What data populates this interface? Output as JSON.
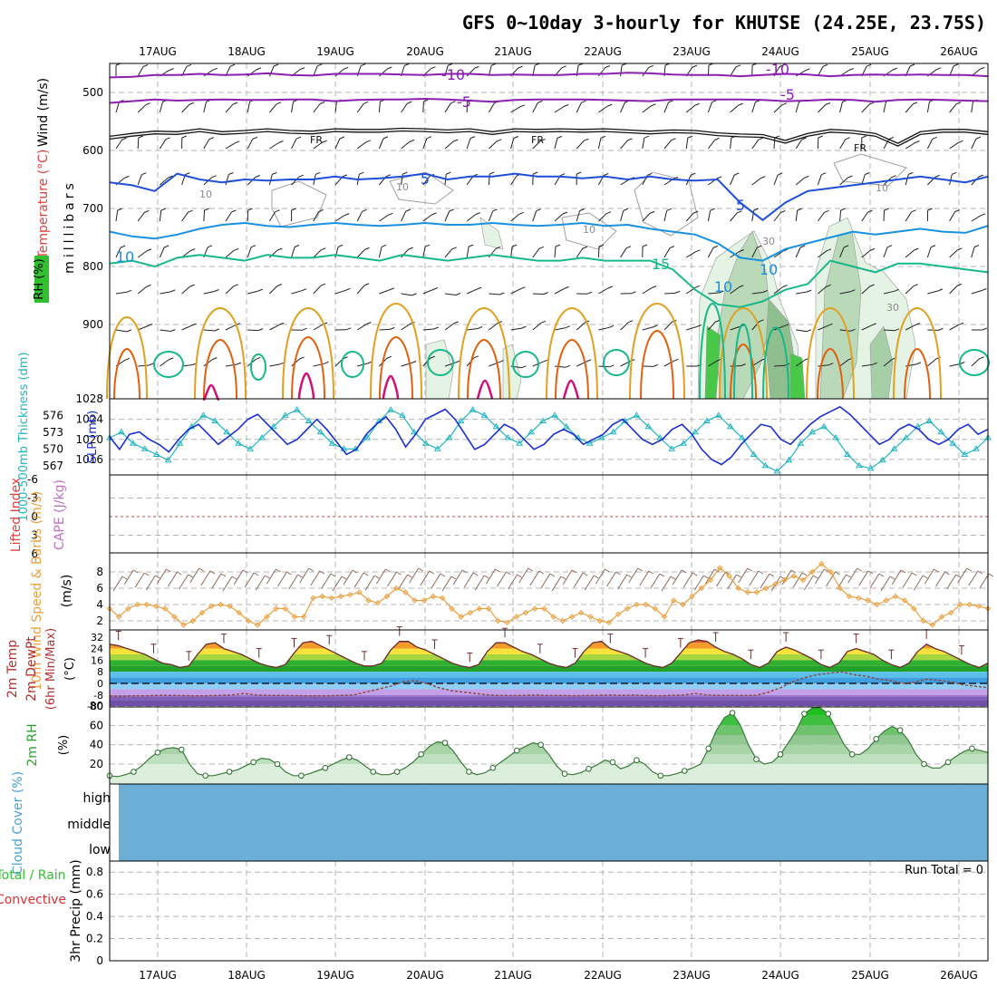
{
  "title": "GFS 0~10day 3-hourly for KHUTSE (24.25E, 23.75S)",
  "dates": [
    "17AUG",
    "18AUG",
    "19AUG",
    "20AUG",
    "21AUG",
    "22AUG",
    "23AUG",
    "24AUG",
    "25AUG",
    "26AUG"
  ],
  "colors": {
    "grid": "#b4b4b4",
    "purple": "#8a1fb0",
    "black": "#111111",
    "blue": "#1f4fd6",
    "cyan": "#1a90e0",
    "teal": "#18b88a",
    "orange": "#e0a020",
    "darkorange": "#e06010",
    "magenta": "#d0107a",
    "slp": "#1a2fcc",
    "thick": "#20b5c0",
    "wind10": "#e8a040",
    "rh2m": "#3a9a3a",
    "cloud": "#6baed6"
  },
  "chart_data": [
    {
      "id": "upper_air",
      "type": "line",
      "ylabel": "milllibars",
      "side_labels": [
        "Wind (m/s)",
        "Temperature (°C)",
        "RH (%)"
      ],
      "y_ticks": [
        "500",
        "600",
        "700",
        "800",
        "900",
        "1028"
      ],
      "ylim": [
        450,
        1028
      ],
      "isotherm_labels": [
        "-10",
        "-5",
        "FR",
        "5",
        "10",
        "15",
        "10",
        "-10",
        "-5",
        "FR",
        "5",
        "10",
        "0"
      ],
      "rh_labels": [
        "10",
        "10",
        "10",
        "30",
        "30",
        "10"
      ],
      "series": [
        {
          "name": "-10C",
          "color_key": "purple",
          "values": [
            474,
            473,
            470,
            470,
            468,
            470,
            469,
            467,
            470,
            471,
            468,
            468,
            468,
            469,
            470,
            468,
            468,
            470,
            469,
            470,
            470,
            468,
            468,
            466,
            467,
            469,
            470,
            470,
            472,
            470,
            468,
            469,
            472,
            470,
            469,
            470,
            469,
            470,
            470,
            472
          ]
        },
        {
          "name": "-5C",
          "color_key": "purple",
          "values": [
            518,
            515,
            512,
            514,
            513,
            512,
            513,
            513,
            512,
            512,
            515,
            513,
            512,
            512,
            511,
            512,
            514,
            516,
            513,
            512,
            512,
            512,
            513,
            514,
            515,
            512,
            512,
            512,
            512,
            513,
            515,
            514,
            512,
            513,
            516,
            513,
            512,
            513,
            514,
            515
          ]
        },
        {
          "name": "FR",
          "color_key": "black",
          "values": [
            578,
            573,
            569,
            570,
            565,
            570,
            568,
            565,
            568,
            569,
            565,
            566,
            566,
            564,
            565,
            567,
            565,
            570,
            565,
            566,
            565,
            566,
            565,
            567,
            569,
            567,
            568,
            572,
            574,
            575,
            585,
            573,
            566,
            568,
            573,
            590,
            570,
            566,
            566,
            570
          ]
        },
        {
          "name": "5C",
          "color_key": "blue",
          "values": [
            655,
            660,
            670,
            640,
            650,
            655,
            650,
            652,
            650,
            650,
            645,
            650,
            648,
            645,
            640,
            650,
            645,
            645,
            640,
            645,
            645,
            648,
            645,
            650,
            645,
            650,
            652,
            650,
            690,
            720,
            690,
            670,
            665,
            660,
            655,
            650,
            645,
            650,
            655,
            645
          ]
        },
        {
          "name": "10C",
          "color_key": "cyan",
          "values": [
            740,
            748,
            752,
            745,
            735,
            728,
            725,
            730,
            732,
            728,
            725,
            728,
            730,
            728,
            725,
            728,
            728,
            725,
            728,
            730,
            728,
            725,
            730,
            728,
            735,
            740,
            745,
            760,
            785,
            790,
            770,
            760,
            750,
            740,
            745,
            740,
            735,
            740,
            742,
            730
          ]
        },
        {
          "name": "15C",
          "color_key": "teal",
          "values": [
            795,
            790,
            800,
            785,
            780,
            785,
            790,
            780,
            785,
            785,
            780,
            785,
            790,
            780,
            785,
            790,
            785,
            780,
            785,
            790,
            790,
            785,
            790,
            790,
            790,
            805,
            840,
            865,
            870,
            860,
            840,
            830,
            790,
            800,
            810,
            795,
            795,
            800,
            805,
            810
          ]
        }
      ]
    },
    {
      "id": "slp_thickness",
      "type": "line",
      "ylabel_left": "1000-500mb Thickness (dm)",
      "ylabel_right": "SLP (mb)",
      "left_ticks": [
        "576",
        "573",
        "570",
        "567"
      ],
      "right_ticks": [
        "1024",
        "1020",
        "1016"
      ],
      "series": [
        {
          "name": "SLP (mb)",
          "color_key": "slp",
          "values": [
            1020.5,
            1018,
            1021,
            1021.5,
            1020,
            1019,
            1017.5,
            1020,
            1022,
            1023,
            1021,
            1019,
            1020.5,
            1022,
            1024,
            1025,
            1023,
            1021,
            1019,
            1020,
            1022,
            1024,
            1022,
            1019.5,
            1017,
            1018,
            1021,
            1023,
            1024.5,
            1022,
            1018.5,
            1021,
            1024,
            1025,
            1026,
            1024,
            1021,
            1018,
            1019,
            1021,
            1023,
            1022,
            1020,
            1018,
            1019,
            1021,
            1022,
            1021,
            1019,
            1020,
            1021,
            1023,
            1024,
            1022,
            1020,
            1019,
            1020,
            1022,
            1023,
            1021,
            1018,
            1016,
            1015,
            1016.5,
            1019,
            1021,
            1023,
            1022.5,
            1020,
            1019,
            1021,
            1023,
            1024.5,
            1025.5,
            1026.5,
            1025,
            1023,
            1021,
            1019,
            1020,
            1022,
            1023,
            1022,
            1020,
            1019,
            1020,
            1022,
            1023,
            1021,
            1022
          ]
        },
        {
          "name": "Thickness (dm)",
          "color_key": "thick",
          "values": [
            572,
            573,
            571,
            570,
            569,
            568,
            571,
            574,
            576,
            575,
            573,
            571,
            570,
            572,
            574,
            576,
            577,
            575,
            573,
            571,
            570,
            570,
            572,
            575,
            577,
            576,
            573,
            571,
            570,
            572,
            575,
            577,
            576,
            574,
            572,
            571,
            573,
            575,
            576,
            574,
            572,
            571,
            572,
            573,
            575,
            576,
            574,
            572,
            570,
            571,
            573,
            575,
            576,
            574,
            572,
            569,
            567,
            566,
            568,
            571,
            573,
            574,
            572,
            569,
            567,
            566.5,
            568,
            570,
            572,
            574,
            575,
            573,
            571,
            569,
            570,
            572
          ]
        }
      ]
    },
    {
      "id": "cape_li",
      "type": "line",
      "ylabel_left": "Lifted Index",
      "ylabel_right": "CAPE (J/kg)",
      "y_ticks": [
        "-6",
        "-3",
        "0",
        "3",
        "6"
      ],
      "series": [
        {
          "name": "Lifted Index",
          "values": []
        },
        {
          "name": "CAPE",
          "values": []
        }
      ]
    },
    {
      "id": "wind10m",
      "type": "line",
      "ylabel": "10m Wind Speed & Barbs (m/s)",
      "y_ticks": [
        "8",
        "6",
        "4",
        "2"
      ],
      "series": [
        {
          "name": "10m Wind Speed",
          "color_key": "wind10",
          "values": [
            3.5,
            2.5,
            3.5,
            4,
            4,
            3.8,
            3.5,
            2.5,
            1.5,
            2,
            3,
            3.8,
            4,
            3.8,
            3,
            2,
            1.5,
            2.5,
            3.5,
            3.5,
            2.5,
            2.5,
            4.8,
            5,
            4.8,
            5,
            5.2,
            5.5,
            4.5,
            4.2,
            5,
            6,
            5.5,
            4.5,
            4.5,
            5,
            4.8,
            3.5,
            2.5,
            3,
            3.5,
            3.5,
            2,
            1.8,
            2.5,
            3,
            3.5,
            3.5,
            2.5,
            2,
            2.5,
            3,
            2.5,
            2,
            1.8,
            2.8,
            3.5,
            4,
            4,
            3.5,
            2.5,
            4.5,
            4,
            5,
            6,
            7,
            8.5,
            7.5,
            6,
            5.5,
            5.5,
            6,
            6.5,
            7,
            7.5,
            7,
            8,
            9,
            8,
            6,
            5,
            4.8,
            4.5,
            4,
            4.5,
            5,
            4.5,
            3.5,
            2,
            1.5,
            2.5,
            3,
            4,
            4,
            3.8,
            3.5
          ]
        }
      ]
    },
    {
      "id": "temp2m",
      "type": "line",
      "ylabel": "2m Temp 2m DewPt (6hr Min/Max) (°C)",
      "y_ticks": [
        "32",
        "24",
        "16",
        "8",
        "0",
        "-8",
        "-80"
      ],
      "series": [
        {
          "name": "2m Temp",
          "values": [
            27,
            26,
            24,
            22,
            20,
            17,
            14,
            13,
            11,
            12,
            20,
            27,
            28,
            24,
            22,
            20,
            17,
            14,
            12,
            11,
            13,
            21,
            28,
            29,
            26,
            23,
            20,
            17,
            14,
            12,
            12,
            14,
            23,
            29,
            29,
            25,
            23,
            20,
            17,
            14,
            12,
            11,
            13,
            22,
            28,
            28,
            25,
            22,
            20,
            17,
            14,
            12,
            11,
            14,
            22,
            28,
            29,
            24,
            22,
            20,
            17,
            14,
            12,
            11,
            14,
            21,
            28,
            30,
            29,
            25,
            22,
            20,
            17,
            13,
            11,
            14,
            22,
            25,
            23,
            20,
            17,
            13,
            11,
            14,
            22,
            24,
            22,
            20,
            16,
            13,
            11,
            14,
            22,
            27,
            24,
            22,
            19,
            16,
            13,
            11,
            14
          ]
        },
        {
          "name": "2m DewPt",
          "values": [
            -14,
            -15,
            -13,
            -12,
            -10,
            -9,
            -11,
            -13,
            -12,
            -10,
            -8,
            -7,
            -8,
            -9,
            -10,
            -11,
            -12,
            -13,
            -12,
            -10,
            -8,
            -6,
            -4,
            -2,
            1,
            2,
            0,
            -3,
            -5,
            -6,
            -7,
            -8,
            -10,
            -11,
            -9,
            -8,
            -11,
            -10,
            -12,
            -11,
            -9,
            -8,
            -10,
            -8,
            -11,
            -12,
            -10,
            -8,
            -7,
            -8,
            -9,
            -10,
            -11,
            -9,
            -6,
            -3,
            1,
            4,
            6,
            7,
            8,
            6,
            5,
            3,
            2,
            0,
            1,
            3,
            2,
            1,
            -1,
            -2,
            -3
          ]
        }
      ]
    },
    {
      "id": "rh2m",
      "type": "area",
      "ylabel": "2m RH (%)",
      "y_ticks": [
        "80",
        "60",
        "40",
        "20"
      ],
      "series": [
        {
          "name": "2m RH",
          "color_key": "rh2m",
          "values": [
            8,
            7,
            9,
            12,
            18,
            26,
            32,
            36,
            37,
            35,
            20,
            10,
            8,
            8,
            10,
            12,
            14,
            18,
            22,
            26,
            25,
            20,
            12,
            8,
            8,
            10,
            13,
            16,
            20,
            24,
            27,
            24,
            18,
            12,
            9,
            9,
            12,
            16,
            22,
            30,
            38,
            43,
            42,
            34,
            22,
            12,
            9,
            11,
            16,
            22,
            28,
            34,
            38,
            42,
            40,
            30,
            18,
            10,
            9,
            11,
            15,
            19,
            24,
            22,
            15,
            18,
            24,
            20,
            12,
            8,
            8,
            10,
            13,
            16,
            20,
            36,
            55,
            68,
            73,
            60,
            40,
            25,
            20,
            22,
            30,
            42,
            55,
            72,
            78,
            78,
            72,
            56,
            40,
            30,
            30,
            36,
            46,
            54,
            59,
            55,
            45,
            30,
            20,
            16,
            16,
            22,
            28,
            33,
            36,
            34,
            32
          ]
        }
      ]
    },
    {
      "id": "cloud",
      "type": "area",
      "ylabel": "Cloud Cover (%)",
      "levels": [
        "high",
        "middle",
        "low"
      ],
      "series": [
        {
          "name": "Cloud Cover",
          "values": [
            100
          ]
        }
      ]
    },
    {
      "id": "precip",
      "type": "bar",
      "ylabel_left": "Total / Rain Convective",
      "ylabel": "3hr Precip (mm)",
      "y_ticks": [
        "0.8",
        "0.6",
        "0.4",
        "0.2",
        "0"
      ],
      "ylim": [
        0,
        0.9
      ],
      "annotation": "Run Total = 0",
      "series": [
        {
          "name": "3hr Precip",
          "values": []
        }
      ]
    }
  ]
}
